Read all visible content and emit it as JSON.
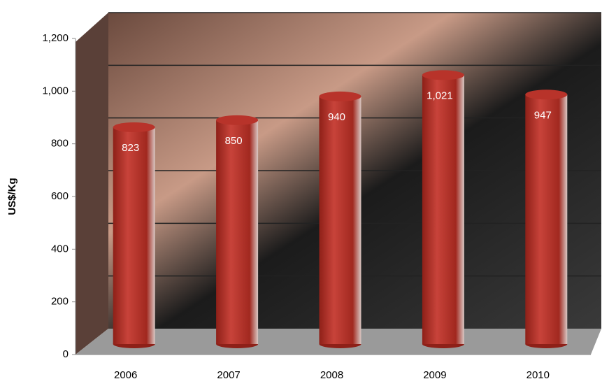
{
  "chart_data": {
    "type": "bar",
    "y_label": "US$/Kg",
    "categories": [
      "2006",
      "2007",
      "2008",
      "2009",
      "2010"
    ],
    "values": [
      823,
      850,
      940,
      1021,
      947
    ],
    "value_labels": [
      "823",
      "850",
      "940",
      "1,021",
      "947"
    ],
    "color": "#b8332a",
    "ylim": [
      0,
      1200
    ],
    "yticks": [
      0,
      200,
      400,
      600,
      800,
      {
        "value": 1000,
        "label": "1,000"
      },
      {
        "value": 1200,
        "label": "1,200"
      }
    ],
    "grid": true
  }
}
